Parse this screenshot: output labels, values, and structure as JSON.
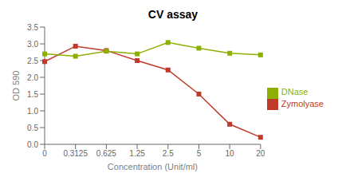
{
  "chart_data": {
    "type": "line",
    "title": "CV assay",
    "xlabel": "Concentration (Unit/ml)",
    "ylabel": "OD 590",
    "categories": [
      "0",
      "0.3125",
      "0.625",
      "1.25",
      "2.5",
      "5",
      "10",
      "20"
    ],
    "series": [
      {
        "name": "Zymolyase",
        "color": "#c0392b",
        "marker": "square",
        "values": [
          2.47,
          2.93,
          2.8,
          2.5,
          2.22,
          1.5,
          0.6,
          0.21
        ]
      },
      {
        "name": "DNase",
        "color": "#8db000",
        "marker": "square",
        "values": [
          2.7,
          2.63,
          2.78,
          2.7,
          3.04,
          2.87,
          2.72,
          2.67
        ]
      }
    ],
    "ylim": [
      0.0,
      3.5
    ],
    "yticks": [
      {
        "value": 0.0,
        "label": "0.0"
      },
      0.5,
      {
        "value": 1.0,
        "label": "1.0"
      },
      1.5,
      {
        "value": 2.0,
        "label": "2.0"
      },
      2.5,
      {
        "value": 3.0,
        "label": "3.0"
      },
      3.5
    ],
    "grid": false,
    "legend": "right"
  }
}
